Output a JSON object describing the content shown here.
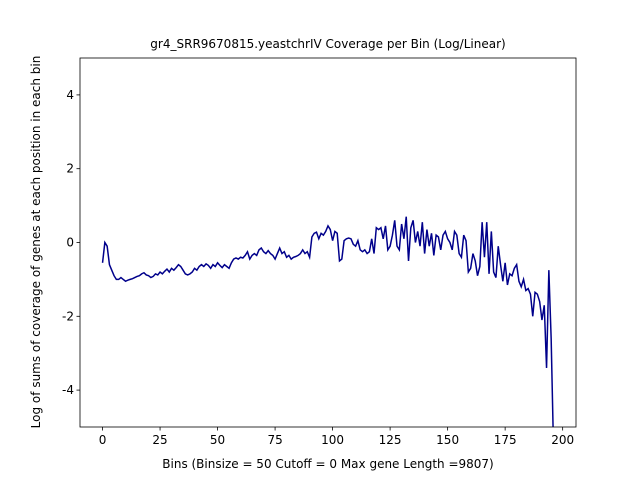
{
  "chart_data": {
    "type": "line",
    "title": "gr4_SRR9670815.yeastchrIV Coverage per Bin (Log/Linear)",
    "x_label": "Bins  (Binsize = 50 Cutoff = 0 Max gene Length =9807)",
    "y_label": "Log of sums of coverage of genes at each position in each bin",
    "xlim": [
      -9.8,
      205.8
    ],
    "ylim": [
      -5,
      5
    ],
    "xticks": [
      0,
      25,
      50,
      75,
      100,
      125,
      150,
      175,
      200
    ],
    "yticks": [
      -4,
      -2,
      0,
      2,
      4
    ],
    "color": "#00008b",
    "x": [
      0,
      1,
      2,
      3,
      4,
      5,
      6,
      7,
      8,
      9,
      10,
      11,
      12,
      13,
      14,
      15,
      16,
      17,
      18,
      19,
      20,
      21,
      22,
      23,
      24,
      25,
      26,
      27,
      28,
      29,
      30,
      31,
      32,
      33,
      34,
      35,
      36,
      37,
      38,
      39,
      40,
      41,
      42,
      43,
      44,
      45,
      46,
      47,
      48,
      49,
      50,
      51,
      52,
      53,
      54,
      55,
      56,
      57,
      58,
      59,
      60,
      61,
      62,
      63,
      64,
      65,
      66,
      67,
      68,
      69,
      70,
      71,
      72,
      73,
      74,
      75,
      76,
      77,
      78,
      79,
      80,
      81,
      82,
      83,
      84,
      85,
      86,
      87,
      88,
      89,
      90,
      91,
      92,
      93,
      94,
      95,
      96,
      97,
      98,
      99,
      100,
      101,
      102,
      103,
      104,
      105,
      106,
      107,
      108,
      109,
      110,
      111,
      112,
      113,
      114,
      115,
      116,
      117,
      118,
      119,
      120,
      121,
      122,
      123,
      124,
      125,
      126,
      127,
      128,
      129,
      130,
      131,
      132,
      133,
      134,
      135,
      136,
      137,
      138,
      139,
      140,
      141,
      142,
      143,
      144,
      145,
      146,
      147,
      148,
      149,
      150,
      151,
      152,
      153,
      154,
      155,
      156,
      157,
      158,
      159,
      160,
      161,
      162,
      163,
      164,
      165,
      166,
      167,
      168,
      169,
      170,
      171,
      172,
      173,
      174,
      175,
      176,
      177,
      178,
      179,
      180,
      181,
      182,
      183,
      184,
      185,
      186,
      187,
      188,
      189,
      190,
      191,
      192,
      193,
      194,
      195,
      196
    ],
    "values": [
      -0.55,
      0.0,
      -0.1,
      -0.6,
      -0.75,
      -0.9,
      -1.0,
      -1.0,
      -0.95,
      -1.0,
      -1.05,
      -1.02,
      -1.0,
      -0.98,
      -0.95,
      -0.92,
      -0.9,
      -0.85,
      -0.82,
      -0.88,
      -0.9,
      -0.95,
      -0.92,
      -0.85,
      -0.88,
      -0.8,
      -0.85,
      -0.78,
      -0.72,
      -0.8,
      -0.7,
      -0.75,
      -0.68,
      -0.6,
      -0.65,
      -0.75,
      -0.85,
      -0.88,
      -0.85,
      -0.8,
      -0.7,
      -0.75,
      -0.65,
      -0.6,
      -0.65,
      -0.58,
      -0.62,
      -0.7,
      -0.6,
      -0.65,
      -0.55,
      -0.62,
      -0.68,
      -0.6,
      -0.65,
      -0.7,
      -0.55,
      -0.45,
      -0.42,
      -0.45,
      -0.4,
      -0.42,
      -0.35,
      -0.25,
      -0.45,
      -0.35,
      -0.3,
      -0.35,
      -0.2,
      -0.15,
      -0.25,
      -0.3,
      -0.22,
      -0.3,
      -0.35,
      -0.45,
      -0.3,
      -0.15,
      -0.3,
      -0.25,
      -0.4,
      -0.35,
      -0.45,
      -0.4,
      -0.38,
      -0.35,
      -0.3,
      -0.2,
      -0.3,
      -0.25,
      -0.4,
      0.15,
      0.25,
      0.28,
      0.1,
      0.25,
      0.2,
      0.3,
      0.45,
      0.35,
      0.05,
      0.3,
      0.25,
      -0.5,
      -0.45,
      0.05,
      0.1,
      0.12,
      0.1,
      -0.05,
      -0.1,
      0.05,
      -0.2,
      -0.25,
      -0.2,
      -0.3,
      -0.25,
      0.1,
      -0.3,
      0.4,
      0.35,
      0.4,
      0.1,
      0.45,
      -0.2,
      -0.1,
      0.2,
      0.6,
      -0.1,
      -0.2,
      0.5,
      0.1,
      0.7,
      -0.5,
      0.4,
      0.6,
      0.0,
      0.3,
      -0.1,
      0.55,
      -0.3,
      0.35,
      -0.1,
      0.25,
      -0.35,
      0.2,
      0.15,
      -0.2,
      0.2,
      0.3,
      0.1,
      0.0,
      -0.2,
      0.3,
      0.2,
      -0.3,
      -0.4,
      0.2,
      0.05,
      -0.8,
      -0.7,
      -0.3,
      -0.5,
      -0.9,
      -0.65,
      0.55,
      -0.4,
      0.55,
      -0.85,
      0.3,
      -0.8,
      -0.95,
      -0.1,
      -0.6,
      -1.05,
      -0.55,
      -1.15,
      -0.85,
      -0.9,
      -0.7,
      -0.6,
      -1.05,
      -1.2,
      -1.0,
      -1.3,
      -1.25,
      -1.4,
      -2.0,
      -1.35,
      -1.4,
      -1.6,
      -2.1,
      -1.7,
      -3.4,
      -0.75,
      -2.6,
      -5.5
    ]
  }
}
